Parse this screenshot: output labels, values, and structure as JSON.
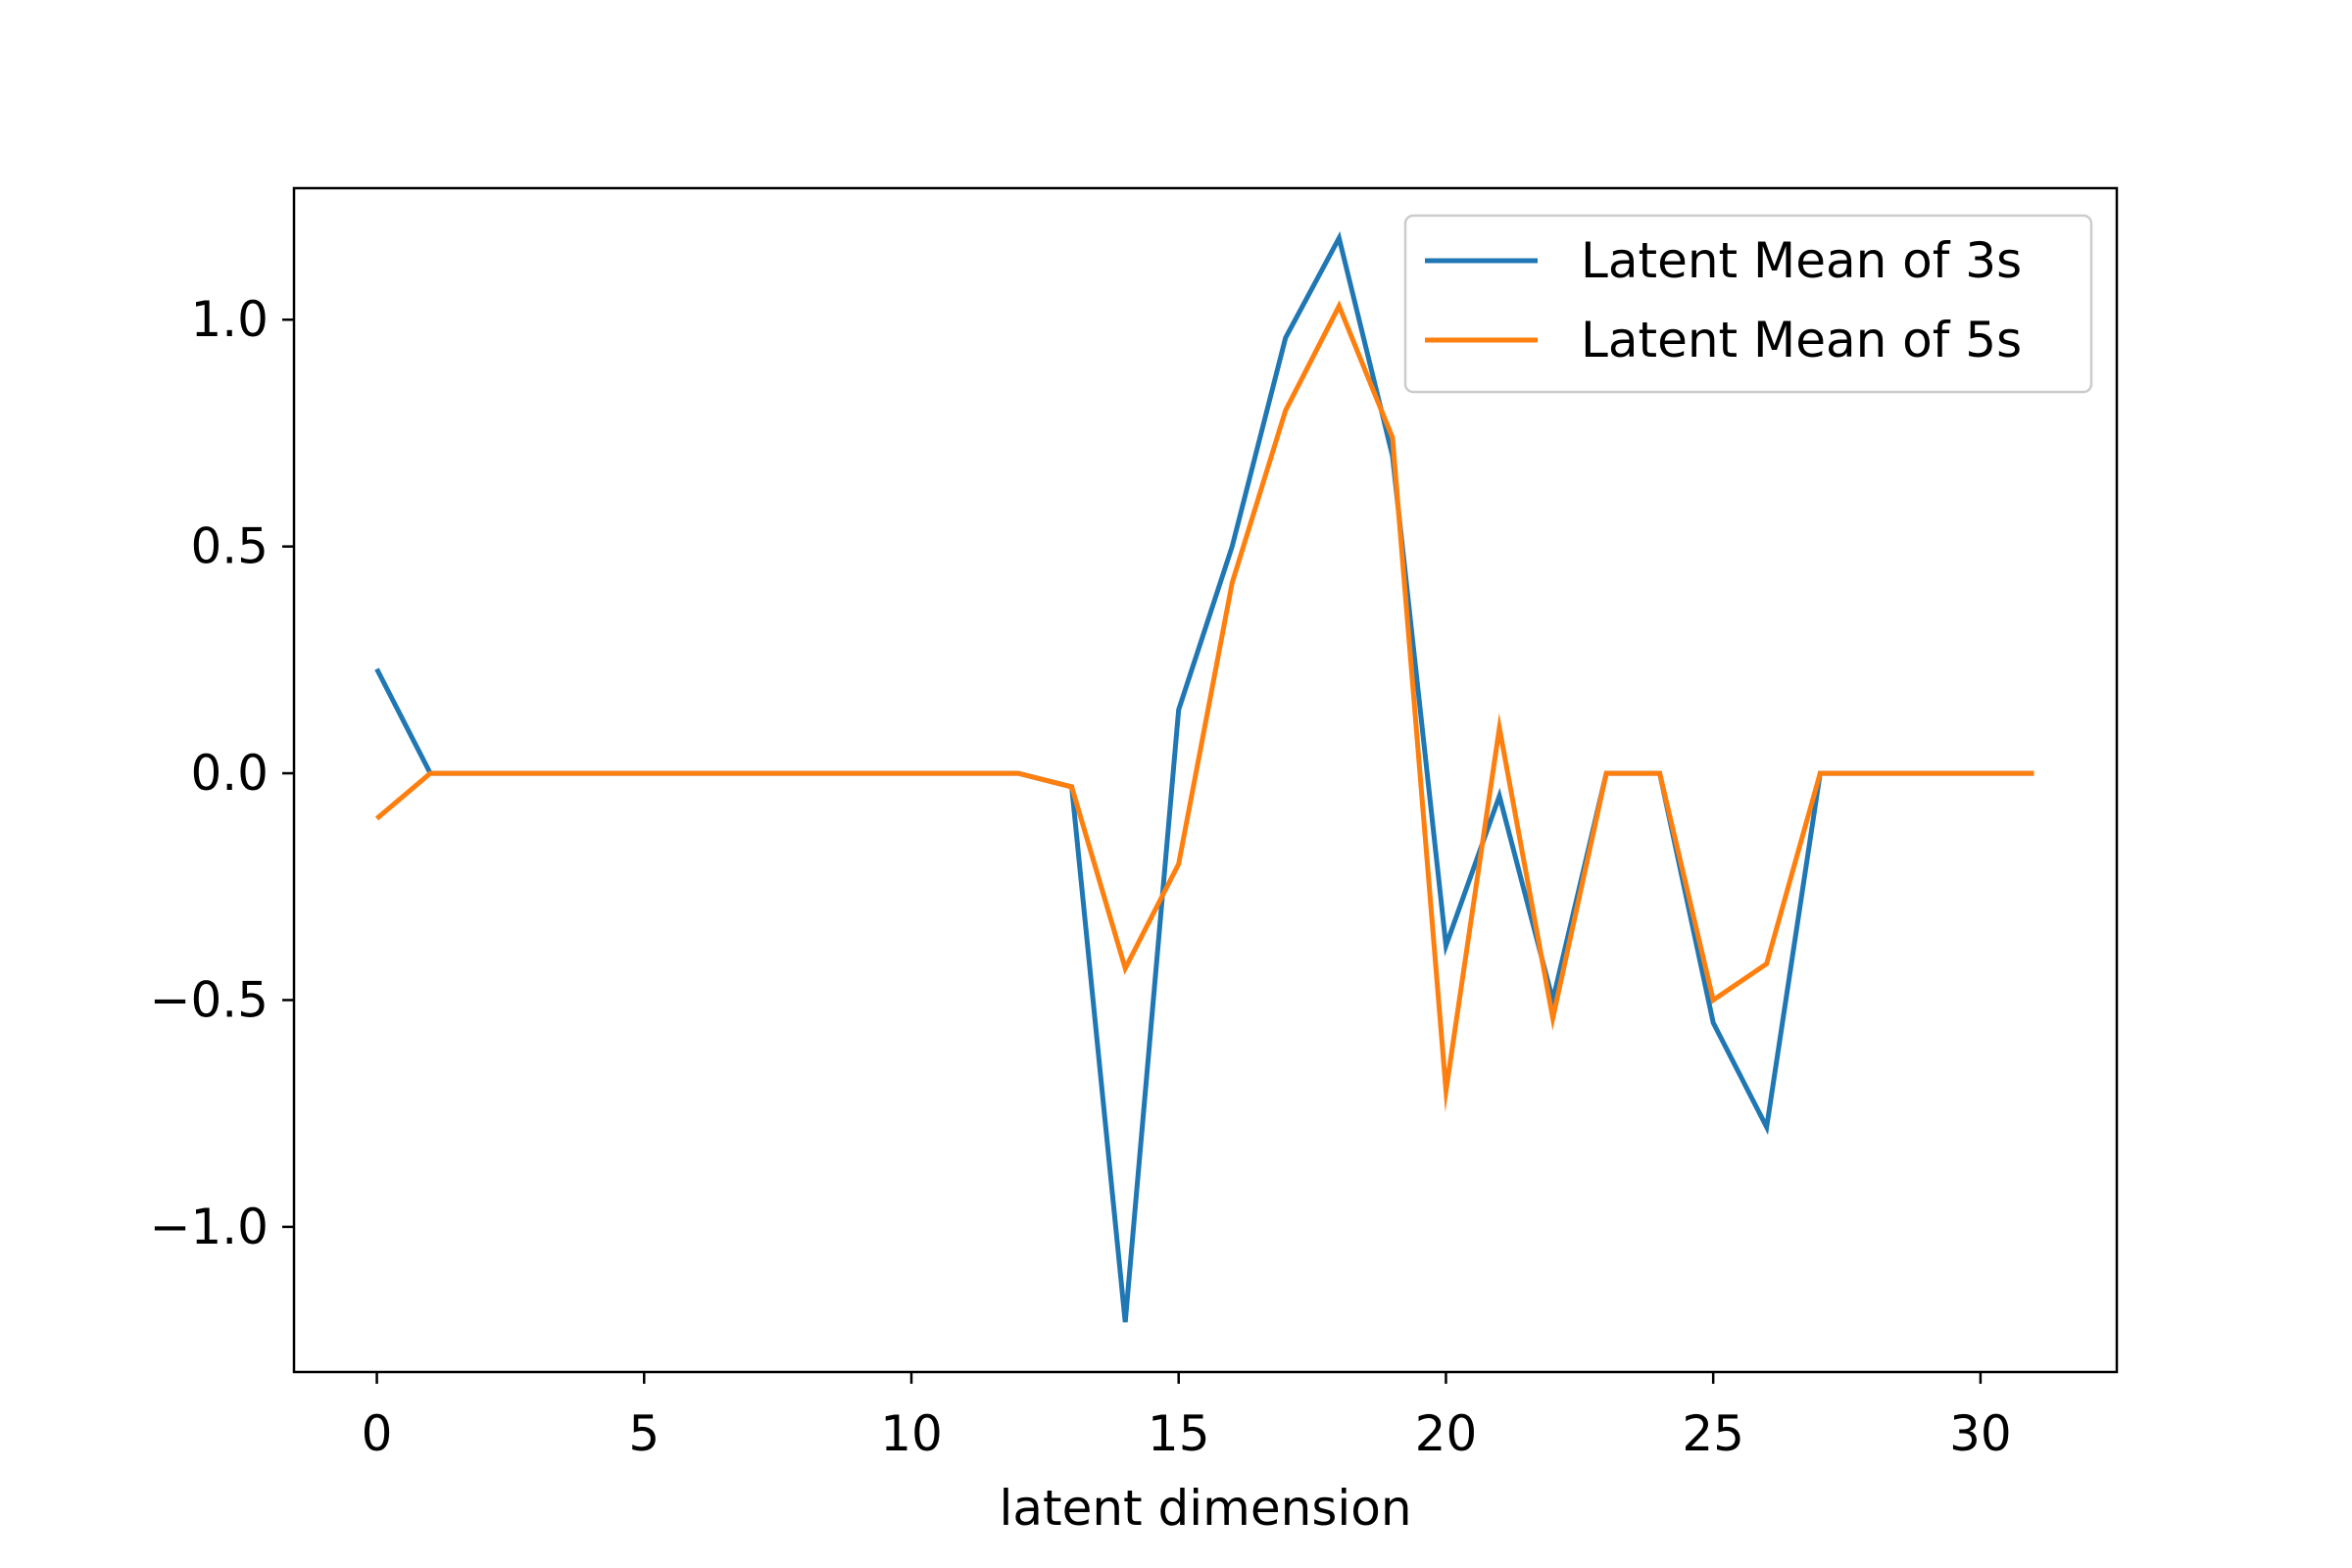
{
  "chart_data": {
    "type": "line",
    "title": "",
    "xlabel": "latent dimension",
    "ylabel": "",
    "xlim": [
      -1.55,
      32.55
    ],
    "ylim": [
      -1.32,
      1.29
    ],
    "xticks": [
      0,
      5,
      10,
      15,
      20,
      25,
      30
    ],
    "xtick_labels": [
      "0",
      "5",
      "10",
      "15",
      "20",
      "25",
      "30"
    ],
    "yticks": [
      1.0,
      0.5,
      0.0,
      -0.5,
      -1.0
    ],
    "ytick_labels": [
      "1.0",
      "0.5",
      "0.0",
      "−0.5",
      "−1.0"
    ],
    "grid": false,
    "legend_position": "top-right",
    "x": [
      0,
      1,
      2,
      3,
      4,
      5,
      6,
      7,
      8,
      9,
      10,
      11,
      12,
      13,
      14,
      15,
      16,
      17,
      18,
      19,
      20,
      21,
      22,
      23,
      24,
      25,
      26,
      27,
      28,
      29,
      30,
      31
    ],
    "series": [
      {
        "name": "Latent Mean of 3s",
        "color": "#1f77b4",
        "values": [
          0.23,
          0.0,
          0.0,
          0.0,
          0.0,
          0.0,
          0.0,
          0.0,
          0.0,
          0.0,
          0.0,
          0.0,
          0.0,
          -0.03,
          -1.21,
          0.14,
          0.5,
          0.96,
          1.18,
          0.7,
          -0.38,
          -0.05,
          -0.5,
          0.0,
          0.0,
          -0.55,
          -0.78,
          0.0,
          0.0,
          0.0,
          0.0,
          0.0
        ]
      },
      {
        "name": "Latent Mean of 5s",
        "color": "#ff7f0e",
        "values": [
          -0.1,
          0.0,
          0.0,
          0.0,
          0.0,
          0.0,
          0.0,
          0.0,
          0.0,
          0.0,
          0.0,
          0.0,
          0.0,
          -0.03,
          -0.43,
          -0.2,
          0.42,
          0.8,
          1.03,
          0.74,
          -0.7,
          0.1,
          -0.54,
          0.0,
          0.0,
          -0.5,
          -0.42,
          0.0,
          0.0,
          0.0,
          0.0,
          0.0
        ]
      }
    ]
  }
}
